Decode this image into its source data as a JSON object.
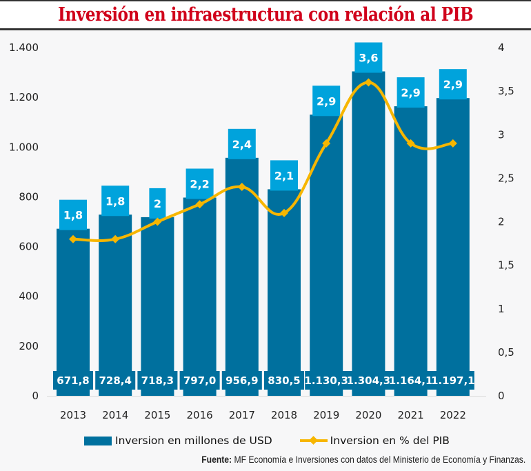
{
  "chart_data": {
    "type": "bar",
    "title": "Inversión en infraestructura con relación al PIB",
    "categories": [
      "2013",
      "2014",
      "2015",
      "2016",
      "2017",
      "2018",
      "2019",
      "2020",
      "2021",
      "2022"
    ],
    "series": [
      {
        "name": "Inversion en millones de USD",
        "type": "bar",
        "axis": "left",
        "color": "#00709e",
        "values": [
          671.8,
          728.4,
          718.3,
          797.0,
          956.9,
          830.5,
          1130.3,
          1304.3,
          1164.1,
          1197.1
        ],
        "labels": [
          "671,8",
          "728,4",
          "718,3",
          "797,0",
          "956,9",
          "830,5",
          "1.130,3",
          "1.304,3",
          "1.164,1",
          "1.197,1"
        ]
      },
      {
        "name": "Inversion en % del PIB",
        "type": "line",
        "axis": "right",
        "color": "#f7b600",
        "label_box_color": "#00a3dc",
        "values": [
          1.8,
          1.8,
          2.0,
          2.2,
          2.4,
          2.1,
          2.9,
          3.6,
          2.9,
          2.9
        ],
        "labels": [
          "1,8",
          "1,8",
          "2",
          "2,2",
          "2,4",
          "2,1",
          "2,9",
          "3,6",
          "2,9",
          "2,9"
        ]
      }
    ],
    "y_left": {
      "ylim": [
        0,
        1400
      ],
      "ticks": [
        0,
        200,
        400,
        600,
        800,
        1000,
        1200,
        1400
      ],
      "tick_labels": [
        "0",
        "200",
        "400",
        "600",
        "800",
        "1.000",
        "1.200",
        "1.400"
      ]
    },
    "y_right": {
      "ylim": [
        0,
        4
      ],
      "ticks": [
        0,
        0.5,
        1,
        1.5,
        2,
        2.5,
        3,
        3.5,
        4
      ],
      "tick_labels": [
        "0",
        "0,5",
        "1",
        "1,5",
        "2",
        "2,5",
        "3",
        "3,5",
        "4"
      ]
    },
    "xlabel": "",
    "ylabel": "",
    "grid": false,
    "legend_position": "bottom",
    "source_label": "Fuente:",
    "source_text": " MF Economía e Inversiones con datos del Ministerio de Economía y Finanzas."
  }
}
